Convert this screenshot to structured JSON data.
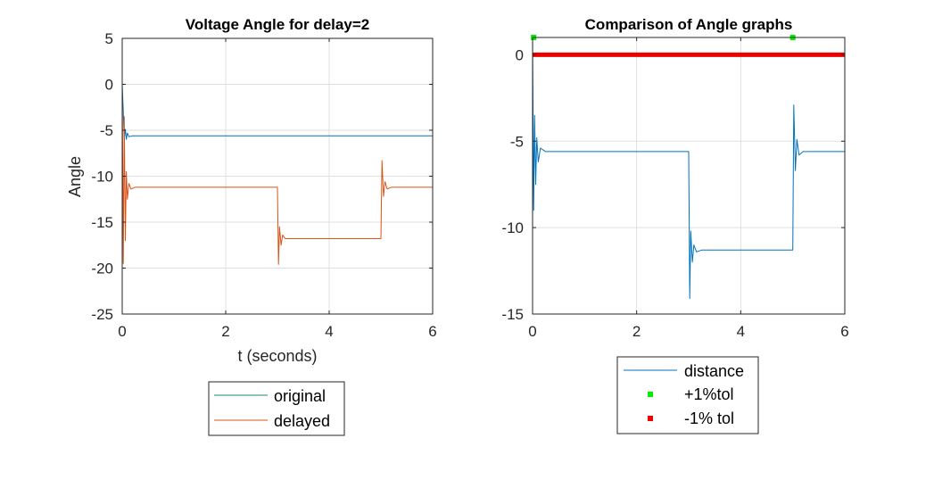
{
  "chart_data": [
    {
      "type": "line",
      "title": "Voltage Angle for delay=2",
      "xlabel": "t (seconds)",
      "ylabel": "Angle",
      "xlim": [
        0,
        6
      ],
      "ylim": [
        -25,
        5
      ],
      "xticks": [
        0,
        2,
        4,
        6
      ],
      "yticks": [
        5,
        0,
        -5,
        -10,
        -15,
        -20,
        -25
      ],
      "grid": true,
      "legend_position": "bottom-outside",
      "series": [
        {
          "name": "original",
          "color": "#0072BD",
          "legend_color": "#1a8a6e",
          "points": [
            [
              0,
              0
            ],
            [
              0.02,
              -3.0
            ],
            [
              0.04,
              -5.9
            ],
            [
              0.06,
              -4.9
            ],
            [
              0.08,
              -6.0
            ],
            [
              0.1,
              -5.3
            ],
            [
              0.13,
              -5.7
            ],
            [
              0.2,
              -5.6
            ],
            [
              6,
              -5.6
            ]
          ]
        },
        {
          "name": "delayed",
          "color": "#D95319",
          "points": [
            [
              0,
              0
            ],
            [
              0.02,
              -19.5
            ],
            [
              0.04,
              -3.5
            ],
            [
              0.06,
              -17.0
            ],
            [
              0.08,
              -9.5
            ],
            [
              0.1,
              -12.5
            ],
            [
              0.13,
              -10.8
            ],
            [
              0.17,
              -11.4
            ],
            [
              0.25,
              -11.2
            ],
            [
              3.0,
              -11.2
            ],
            [
              3.02,
              -19.6
            ],
            [
              3.04,
              -15.5
            ],
            [
              3.07,
              -17.5
            ],
            [
              3.1,
              -16.4
            ],
            [
              3.15,
              -16.8
            ],
            [
              5.0,
              -16.8
            ],
            [
              5.02,
              -8.3
            ],
            [
              5.05,
              -12.2
            ],
            [
              5.08,
              -10.6
            ],
            [
              5.12,
              -11.4
            ],
            [
              5.2,
              -11.2
            ],
            [
              6,
              -11.2
            ]
          ]
        }
      ]
    },
    {
      "type": "line",
      "title": "Comparison of Angle graphs",
      "xlim": [
        0,
        6
      ],
      "ylim": [
        -15,
        1
      ],
      "xticks": [
        0,
        2,
        4,
        6
      ],
      "yticks": [
        0,
        -5,
        -10,
        -15
      ],
      "grid": true,
      "legend_position": "bottom-outside",
      "series": [
        {
          "name": "distance",
          "color": "#0072BD",
          "points": [
            [
              0,
              1.0
            ],
            [
              0.02,
              -9.0
            ],
            [
              0.04,
              -3.5
            ],
            [
              0.06,
              -7.5
            ],
            [
              0.08,
              -4.8
            ],
            [
              0.11,
              -6.2
            ],
            [
              0.15,
              -5.4
            ],
            [
              0.25,
              -5.6
            ],
            [
              3.0,
              -5.6
            ],
            [
              3.02,
              -14.1
            ],
            [
              3.04,
              -10.2
            ],
            [
              3.07,
              -12.0
            ],
            [
              3.1,
              -11.0
            ],
            [
              3.15,
              -11.4
            ],
            [
              3.25,
              -11.3
            ],
            [
              5.0,
              -11.3
            ],
            [
              5.02,
              -2.9
            ],
            [
              5.05,
              -6.7
            ],
            [
              5.08,
              -4.9
            ],
            [
              5.12,
              -5.8
            ],
            [
              5.2,
              -5.6
            ],
            [
              6,
              -5.6
            ]
          ]
        },
        {
          "name": "+1%tol",
          "color": "#00ee00",
          "style": "markers",
          "points": [
            [
              0.02,
              1.0
            ],
            [
              5.0,
              1.0
            ]
          ]
        },
        {
          "name": "-1% tol",
          "color": "#ee0000",
          "style": "thick-line",
          "points": [
            [
              0,
              0
            ],
            [
              6,
              0
            ]
          ]
        }
      ]
    }
  ]
}
